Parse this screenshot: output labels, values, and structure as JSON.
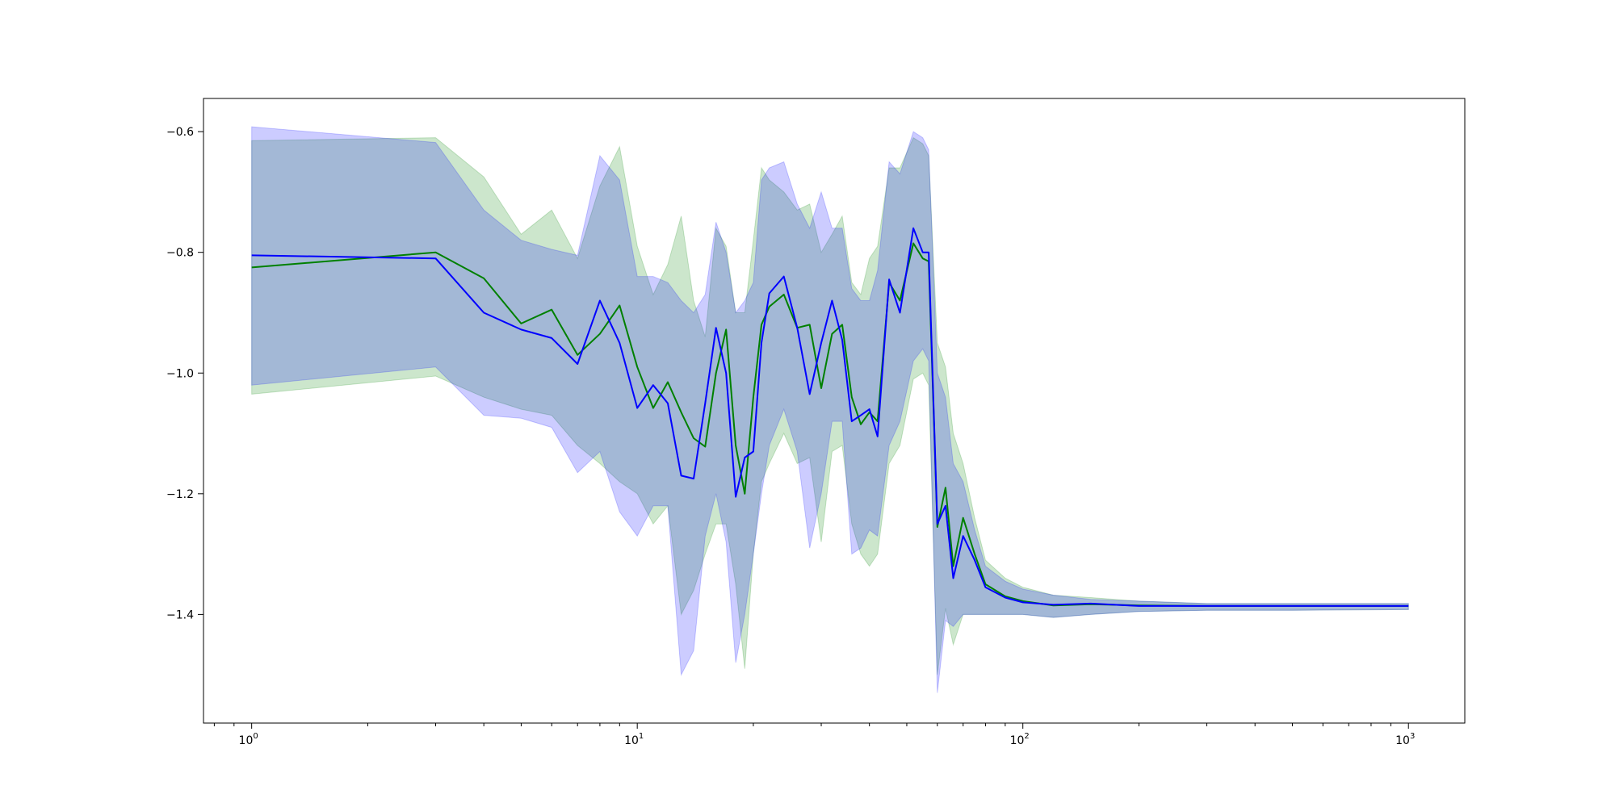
{
  "chart_data": {
    "type": "line",
    "title": "",
    "xlabel": "",
    "ylabel": "",
    "xscale": "log",
    "xlim": [
      0.75,
      1400
    ],
    "ylim": [
      -1.58,
      -0.545
    ],
    "grid": false,
    "legend": "none",
    "x_ticks": [
      {
        "base": "10",
        "exp": "0",
        "value": 1
      },
      {
        "base": "10",
        "exp": "1",
        "value": 10
      },
      {
        "base": "10",
        "exp": "2",
        "value": 100
      },
      {
        "base": "10",
        "exp": "3",
        "value": 1000
      }
    ],
    "y_ticks": [
      {
        "label": "−0.6",
        "value": -0.6
      },
      {
        "label": "−0.8",
        "value": -0.8
      },
      {
        "label": "−1.0",
        "value": -1.0
      },
      {
        "label": "−1.2",
        "value": -1.2
      },
      {
        "label": "−1.4",
        "value": -1.4
      }
    ],
    "series": [
      {
        "color": "#008000",
        "fill_color": "#008000",
        "x": [
          1,
          3,
          4,
          5,
          6,
          7,
          8,
          9,
          10,
          11,
          12,
          13,
          14,
          15,
          16,
          17,
          18,
          19,
          20,
          21,
          22,
          24,
          26,
          28,
          30,
          32,
          34,
          36,
          38,
          40,
          42,
          45,
          48,
          52,
          55,
          57,
          60,
          63,
          66,
          70,
          75,
          80,
          90,
          100,
          120,
          150,
          200,
          300,
          500,
          1000
        ],
        "y": [
          -0.825,
          -0.8,
          -0.843,
          -0.918,
          -0.895,
          -0.97,
          -0.935,
          -0.888,
          -0.99,
          -1.058,
          -1.015,
          -1.065,
          -1.108,
          -1.122,
          -1.0,
          -0.928,
          -1.12,
          -1.2,
          -1.04,
          -0.92,
          -0.89,
          -0.87,
          -0.925,
          -0.92,
          -1.025,
          -0.935,
          -0.92,
          -1.04,
          -1.085,
          -1.065,
          -1.08,
          -0.85,
          -0.88,
          -0.785,
          -0.81,
          -0.815,
          -1.255,
          -1.19,
          -1.32,
          -1.24,
          -1.3,
          -1.35,
          -1.37,
          -1.378,
          -1.385,
          -1.383,
          -1.385,
          -1.386,
          -1.386,
          -1.386
        ],
        "upper": [
          -0.615,
          -0.61,
          -0.675,
          -0.77,
          -0.73,
          -0.81,
          -0.69,
          -0.625,
          -0.79,
          -0.87,
          -0.82,
          -0.74,
          -0.88,
          -0.94,
          -0.76,
          -0.79,
          -0.9,
          -0.9,
          -0.78,
          -0.66,
          -0.68,
          -0.7,
          -0.73,
          -0.72,
          -0.8,
          -0.77,
          -0.74,
          -0.85,
          -0.87,
          -0.81,
          -0.79,
          -0.66,
          -0.66,
          -0.61,
          -0.62,
          -0.64,
          -0.95,
          -0.99,
          -1.1,
          -1.15,
          -1.24,
          -1.31,
          -1.34,
          -1.355,
          -1.368,
          -1.372,
          -1.378,
          -1.382,
          -1.382,
          -1.382
        ],
        "lower": [
          -1.035,
          -1.005,
          -1.04,
          -1.06,
          -1.07,
          -1.12,
          -1.15,
          -1.18,
          -1.2,
          -1.25,
          -1.22,
          -1.4,
          -1.36,
          -1.3,
          -1.25,
          -1.25,
          -1.35,
          -1.49,
          -1.3,
          -1.18,
          -1.15,
          -1.1,
          -1.15,
          -1.14,
          -1.28,
          -1.13,
          -1.12,
          -1.25,
          -1.3,
          -1.32,
          -1.3,
          -1.15,
          -1.12,
          -1.01,
          -1.0,
          -1.02,
          -1.5,
          -1.39,
          -1.45,
          -1.4,
          -1.4,
          -1.4,
          -1.4,
          -1.4,
          -1.405,
          -1.4,
          -1.395,
          -1.393,
          -1.393,
          -1.392
        ]
      },
      {
        "color": "#0000ff",
        "fill_color": "#0000ff",
        "x": [
          1,
          3,
          4,
          5,
          6,
          7,
          8,
          9,
          10,
          11,
          12,
          13,
          14,
          15,
          16,
          17,
          18,
          19,
          20,
          21,
          22,
          24,
          26,
          28,
          30,
          32,
          34,
          36,
          38,
          40,
          42,
          45,
          48,
          52,
          55,
          57,
          60,
          63,
          66,
          70,
          75,
          80,
          90,
          100,
          120,
          150,
          200,
          300,
          500,
          1000
        ],
        "y": [
          -0.805,
          -0.81,
          -0.9,
          -0.928,
          -0.942,
          -0.985,
          -0.88,
          -0.95,
          -1.058,
          -1.02,
          -1.05,
          -1.17,
          -1.175,
          -1.05,
          -0.925,
          -1.0,
          -1.205,
          -1.14,
          -1.13,
          -0.95,
          -0.868,
          -0.84,
          -0.925,
          -1.035,
          -0.95,
          -0.88,
          -0.945,
          -1.08,
          -1.07,
          -1.06,
          -1.105,
          -0.845,
          -0.9,
          -0.76,
          -0.8,
          -0.8,
          -1.25,
          -1.22,
          -1.34,
          -1.27,
          -1.31,
          -1.355,
          -1.372,
          -1.38,
          -1.384,
          -1.382,
          -1.386,
          -1.386,
          -1.386,
          -1.386
        ],
        "upper": [
          -0.592,
          -0.618,
          -0.73,
          -0.78,
          -0.795,
          -0.805,
          -0.64,
          -0.68,
          -0.84,
          -0.84,
          -0.85,
          -0.88,
          -0.9,
          -0.87,
          -0.75,
          -0.8,
          -0.9,
          -0.88,
          -0.85,
          -0.68,
          -0.66,
          -0.65,
          -0.72,
          -0.76,
          -0.7,
          -0.76,
          -0.76,
          -0.86,
          -0.88,
          -0.88,
          -0.83,
          -0.65,
          -0.67,
          -0.6,
          -0.61,
          -0.63,
          -1.0,
          -1.04,
          -1.15,
          -1.18,
          -1.26,
          -1.32,
          -1.345,
          -1.358,
          -1.368,
          -1.375,
          -1.378,
          -1.382,
          -1.382,
          -1.382
        ],
        "lower": [
          -1.02,
          -0.99,
          -1.07,
          -1.075,
          -1.09,
          -1.165,
          -1.13,
          -1.23,
          -1.27,
          -1.22,
          -1.22,
          -1.5,
          -1.46,
          -1.27,
          -1.2,
          -1.28,
          -1.48,
          -1.4,
          -1.3,
          -1.2,
          -1.12,
          -1.06,
          -1.13,
          -1.29,
          -1.2,
          -1.08,
          -1.08,
          -1.3,
          -1.29,
          -1.26,
          -1.27,
          -1.12,
          -1.08,
          -0.98,
          -0.96,
          -0.98,
          -1.53,
          -1.41,
          -1.42,
          -1.4,
          -1.4,
          -1.4,
          -1.4,
          -1.4,
          -1.405,
          -1.4,
          -1.395,
          -1.393,
          -1.393,
          -1.392
        ]
      }
    ]
  }
}
